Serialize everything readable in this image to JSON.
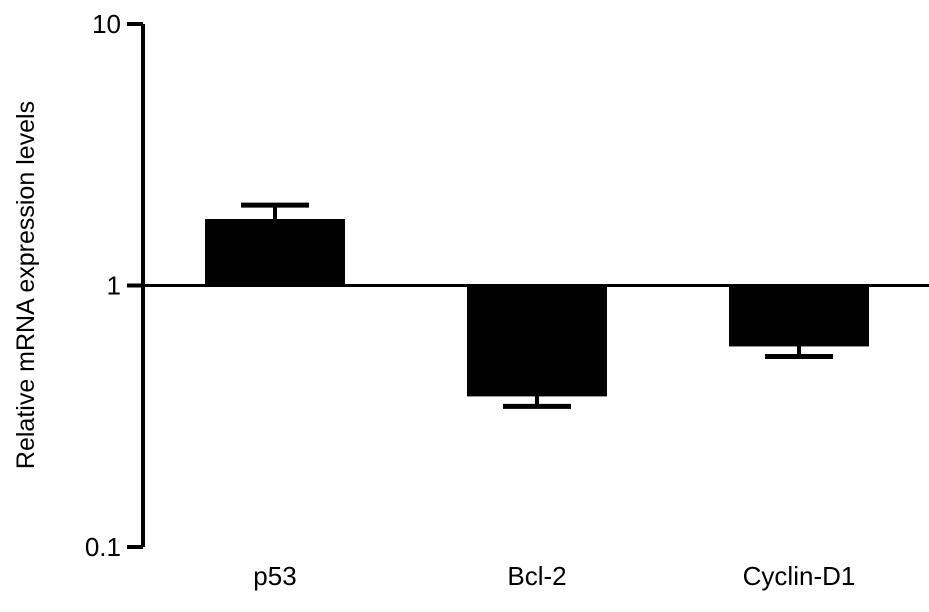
{
  "chart_data": {
    "type": "bar",
    "title": "",
    "xlabel": "",
    "ylabel": "Relative mRNA expression levels",
    "y_scale": "log",
    "ylim": [
      0.1,
      10
    ],
    "baseline": 1,
    "y_ticks": [
      {
        "value": 0.1,
        "label": "0.1"
      },
      {
        "value": 1,
        "label": "1"
      },
      {
        "value": 10,
        "label": "10"
      }
    ],
    "categories": [
      "p53",
      "Bcl-2",
      "Cyclin-D1"
    ],
    "series": [
      {
        "values": [
          1.78,
          0.38,
          0.59
        ],
        "error": [
          0.25,
          0.035,
          0.055
        ],
        "color": "#000000"
      }
    ],
    "grid": false,
    "legend": "none"
  }
}
